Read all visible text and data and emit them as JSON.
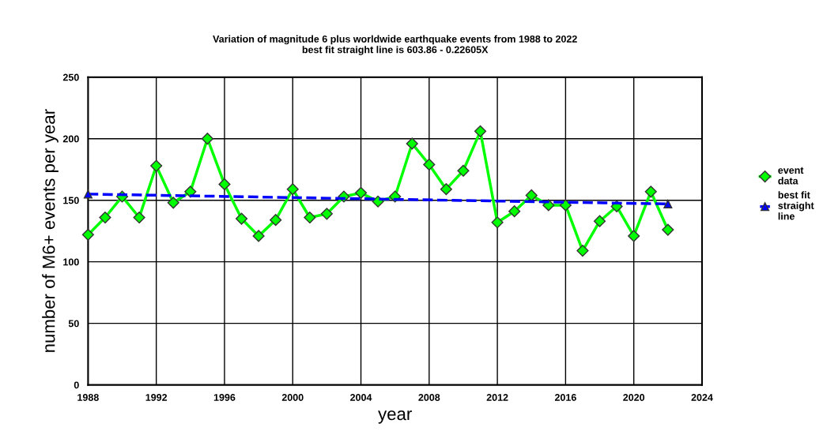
{
  "chart_data": {
    "type": "line",
    "title": "Variation of magnitude 6 plus worldwide earthquake events from 1988 to 2022\nbest fit straight line is 603.86 - 0.22605X",
    "xlabel": "year",
    "ylabel": "number of M6+ events per year",
    "xlim": [
      1988,
      2024
    ],
    "xticks": [
      1988,
      1992,
      1996,
      2000,
      2004,
      2008,
      2012,
      2016,
      2020,
      2024
    ],
    "ylim": [
      0,
      250
    ],
    "yticks": [
      0,
      50,
      100,
      150,
      200,
      250
    ],
    "grid": true,
    "legend": "right",
    "series": [
      {
        "name": "event\ndata",
        "color": "#00ff00",
        "marker": "diamond",
        "line_style": "solid",
        "x": [
          1988,
          1989,
          1990,
          1991,
          1992,
          1993,
          1994,
          1995,
          1996,
          1997,
          1998,
          1999,
          2000,
          2001,
          2002,
          2003,
          2004,
          2005,
          2006,
          2007,
          2008,
          2009,
          2010,
          2011,
          2012,
          2013,
          2014,
          2015,
          2016,
          2017,
          2018,
          2019,
          2020,
          2021,
          2022
        ],
        "values": [
          122,
          136,
          153,
          136,
          178,
          148,
          157,
          200,
          163,
          135,
          121,
          134,
          159,
          136,
          139,
          153,
          156,
          149,
          153,
          196,
          179,
          159,
          174,
          206,
          132,
          141,
          154,
          146,
          146,
          109,
          133,
          145,
          121,
          157,
          126
        ]
      },
      {
        "name": "best fit\nstraight\nline",
        "color": "#0000ff",
        "marker": "triangle",
        "line_style": "dashed",
        "x": [
          1988,
          2022
        ],
        "values": [
          155,
          147
        ]
      }
    ]
  }
}
